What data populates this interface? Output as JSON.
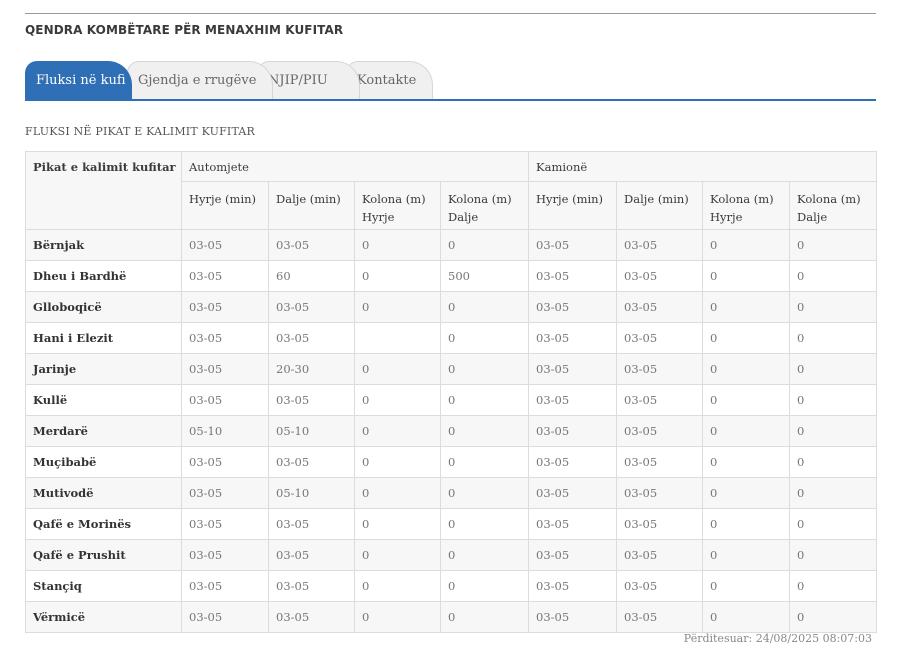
{
  "header": {
    "org_title": "QENDRA KOMBËTARE PËR MENAXHIM KUFITAR"
  },
  "tabs": [
    {
      "label": "Fluksi në kufi",
      "active": true
    },
    {
      "label": "Gjendja e rrugëve",
      "active": false
    },
    {
      "label": "NJIP/PIU",
      "active": false
    },
    {
      "label": "Kontakte",
      "active": false
    }
  ],
  "section": {
    "title": "FLUKSI NË PIKAT E KALIMIT KUFITAR"
  },
  "table": {
    "point_header": "Pikat e kalimit kufitar",
    "groups": [
      "Automjete",
      "Kamionë"
    ],
    "sub_headers": [
      "Hyrje (min)",
      "Dalje (min)",
      "Kolona (m) Hyrje",
      "Kolona (m) Dalje"
    ],
    "rows": [
      {
        "name": "Bërnjak",
        "values": [
          "03-05",
          "03-05",
          "0",
          "0",
          "03-05",
          "03-05",
          "0",
          "0"
        ]
      },
      {
        "name": "Dheu i Bardhë",
        "values": [
          "03-05",
          "60",
          "0",
          "500",
          "03-05",
          "03-05",
          "0",
          "0"
        ]
      },
      {
        "name": "Glloboqicë",
        "values": [
          "03-05",
          "03-05",
          "0",
          "0",
          "03-05",
          "03-05",
          "0",
          "0"
        ]
      },
      {
        "name": "Hani i Elezit",
        "values": [
          "03-05",
          "03-05",
          "",
          "0",
          "03-05",
          "03-05",
          "0",
          "0"
        ]
      },
      {
        "name": "Jarinje",
        "values": [
          "03-05",
          "20-30",
          "0",
          "0",
          "03-05",
          "03-05",
          "0",
          "0"
        ]
      },
      {
        "name": "Kullë",
        "values": [
          "03-05",
          "03-05",
          "0",
          "0",
          "03-05",
          "03-05",
          "0",
          "0"
        ]
      },
      {
        "name": "Merdarë",
        "values": [
          "05-10",
          "05-10",
          "0",
          "0",
          "03-05",
          "03-05",
          "0",
          "0"
        ]
      },
      {
        "name": "Muçibabë",
        "values": [
          "03-05",
          "03-05",
          "0",
          "0",
          "03-05",
          "03-05",
          "0",
          "0"
        ]
      },
      {
        "name": "Mutivodë",
        "values": [
          "03-05",
          "05-10",
          "0",
          "0",
          "03-05",
          "03-05",
          "0",
          "0"
        ]
      },
      {
        "name": "Qafë e Morinës",
        "values": [
          "03-05",
          "03-05",
          "0",
          "0",
          "03-05",
          "03-05",
          "0",
          "0"
        ]
      },
      {
        "name": "Qafë e Prushit",
        "values": [
          "03-05",
          "03-05",
          "0",
          "0",
          "03-05",
          "03-05",
          "0",
          "0"
        ]
      },
      {
        "name": "Stançiq",
        "values": [
          "03-05",
          "03-05",
          "0",
          "0",
          "03-05",
          "03-05",
          "0",
          "0"
        ]
      },
      {
        "name": "Vërmicë",
        "values": [
          "03-05",
          "03-05",
          "0",
          "0",
          "03-05",
          "03-05",
          "0",
          "0"
        ]
      }
    ]
  },
  "footer": {
    "updated": "Përditesuar: 24/08/2025 08:07:03"
  },
  "colors": {
    "accent": "#2f6fb6",
    "border": "#dcdcdc",
    "stripe": "#f7f7f7"
  }
}
